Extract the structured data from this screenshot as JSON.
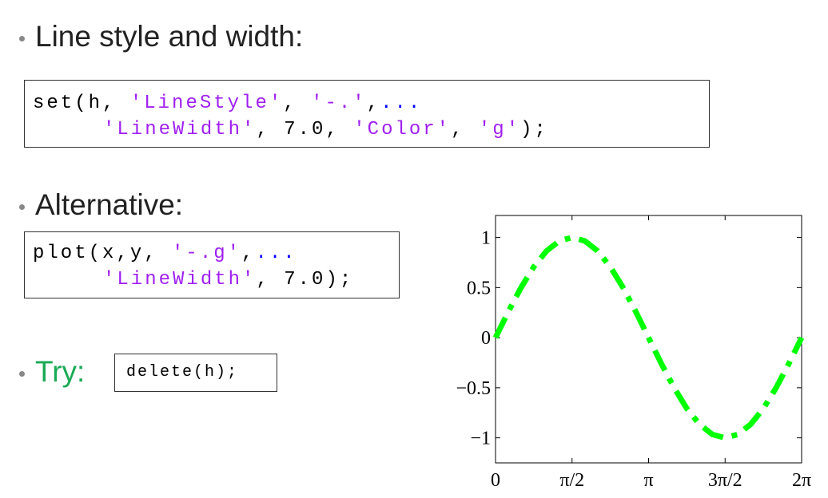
{
  "bullets": [
    {
      "text": "Line style and width:"
    },
    {
      "text": "Alternative:"
    },
    {
      "text": "Try:"
    }
  ],
  "code_blocks": [
    {
      "lines": [
        [
          {
            "text": "set(h, ",
            "kind": "plain"
          },
          {
            "text": "'LineStyle'",
            "kind": "string"
          },
          {
            "text": ", ",
            "kind": "plain"
          },
          {
            "text": "'-.'",
            "kind": "string"
          },
          {
            "text": ",",
            "kind": "plain"
          },
          {
            "text": "...",
            "kind": "continuation"
          }
        ],
        [
          {
            "text": "'LineWidth'",
            "kind": "string"
          },
          {
            "text": ", 7.0, ",
            "kind": "plain"
          },
          {
            "text": "'Color'",
            "kind": "string"
          },
          {
            "text": ", ",
            "kind": "plain"
          },
          {
            "text": "'g'",
            "kind": "string"
          },
          {
            "text": ");",
            "kind": "plain"
          }
        ]
      ]
    },
    {
      "lines": [
        [
          {
            "text": "plot(x,y, ",
            "kind": "plain"
          },
          {
            "text": "'-.g'",
            "kind": "string"
          },
          {
            "text": ",",
            "kind": "plain"
          },
          {
            "text": "...",
            "kind": "continuation"
          }
        ],
        [
          {
            "text": "'LineWidth'",
            "kind": "string"
          },
          {
            "text": ", 7.0);",
            "kind": "plain"
          }
        ]
      ]
    },
    {
      "lines": [
        [
          {
            "text": "delete(h);",
            "kind": "plain"
          }
        ]
      ]
    }
  ],
  "chart_data": {
    "type": "line",
    "x": [
      0,
      0.2618,
      0.5236,
      0.7854,
      1.0472,
      1.309,
      1.5708,
      1.8326,
      2.0944,
      2.3562,
      2.618,
      2.8798,
      3.1416,
      3.4034,
      3.6652,
      3.927,
      4.1888,
      4.4506,
      4.7124,
      4.9742,
      5.236,
      5.4978,
      5.7596,
      6.0214,
      6.2832
    ],
    "series": [
      {
        "color": "#00ff00",
        "line_style": "-.",
        "line_width": 7,
        "values": [
          0,
          0.2588,
          0.5,
          0.7071,
          0.866,
          0.9659,
          1,
          0.9659,
          0.866,
          0.7071,
          0.5,
          0.2588,
          0,
          -0.2588,
          -0.5,
          -0.7071,
          -0.866,
          -0.9659,
          -1,
          -0.9659,
          -0.866,
          -0.7071,
          -0.5,
          -0.2588,
          0
        ]
      }
    ],
    "xlim": [
      0,
      6.2832
    ],
    "ylim": [
      -1.25,
      1.22
    ],
    "xticks": [
      0,
      {
        "value": 1.5708,
        "label": "π/2"
      },
      {
        "value": 3.1416,
        "label": "π"
      },
      {
        "value": 4.7124,
        "label": "3π/2"
      },
      {
        "value": 6.2832,
        "label": "2π"
      }
    ],
    "yticks": [
      {
        "value": -1,
        "label": "−1"
      },
      {
        "value": -0.5,
        "label": "−0.5"
      },
      0,
      0.5,
      1
    ]
  }
}
